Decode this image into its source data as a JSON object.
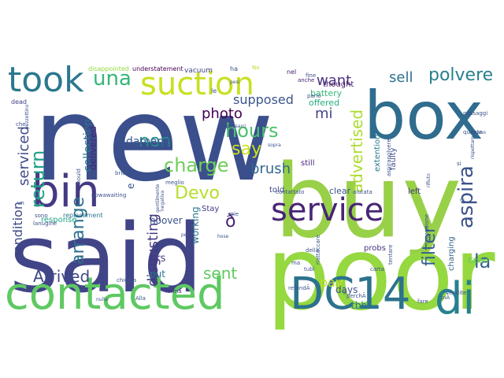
{
  "words": [
    {
      "text": "new",
      "color": "#3a4f8c"
    },
    {
      "text": "buy",
      "color": "#98d048"
    },
    {
      "text": "said",
      "color": "#414487"
    },
    {
      "text": "poor",
      "color": "#95d840"
    },
    {
      "text": "box",
      "color": "#2f6c8e"
    },
    {
      "text": "contacted",
      "color": "#5ec962"
    },
    {
      "text": "suction",
      "color": "#c8e020"
    },
    {
      "text": "DC14",
      "color": "#2c728e"
    },
    {
      "text": "di",
      "color": "#27808e"
    },
    {
      "text": "bin",
      "color": "#443a83"
    },
    {
      "text": "took",
      "color": "#2a788e"
    },
    {
      "text": "service",
      "color": "#482576"
    },
    {
      "text": "una",
      "color": "#35b779"
    },
    {
      "text": "charge",
      "color": "#6ece58"
    },
    {
      "text": "hours",
      "color": "#4ac16d"
    },
    {
      "text": "return",
      "color": "#1fa188"
    },
    {
      "text": "aspira",
      "color": "#3b528b"
    },
    {
      "text": "say",
      "color": "#cde11d"
    },
    {
      "text": "non",
      "color": "#21918c"
    },
    {
      "text": "advertised",
      "color": "#addc30"
    },
    {
      "text": "polvere",
      "color": "#27808e"
    },
    {
      "text": "Devo",
      "color": "#b5de2b"
    },
    {
      "text": "brush",
      "color": "#31688e"
    },
    {
      "text": "photo",
      "color": "#440154"
    },
    {
      "text": "filter",
      "color": "#355f8d"
    },
    {
      "text": "la",
      "color": "#365c8d"
    },
    {
      "text": "want",
      "color": "#46327e"
    },
    {
      "text": "sell",
      "color": "#2c728e"
    },
    {
      "text": "mi",
      "color": "#414487"
    },
    {
      "text": "serviced",
      "color": "#3e4a89"
    },
    {
      "text": "arrange",
      "color": "#2d708e"
    },
    {
      "text": "disgusting",
      "color": "#453882"
    },
    {
      "text": "Arrived",
      "color": "#3f4788"
    },
    {
      "text": "condition",
      "color": "#3e4989"
    },
    {
      "text": "supposed",
      "color": "#3a548c"
    },
    {
      "text": "damage",
      "color": "#38588c"
    },
    {
      "text": "sent",
      "color": "#60ca60"
    },
    {
      "text": "pay",
      "color": "#c2df23"
    },
    {
      "text": "collection",
      "color": "#2c738e"
    },
    {
      "text": "delivered",
      "color": "#482576"
    },
    {
      "text": "hrs",
      "color": "#443983"
    },
    {
      "text": "hoover",
      "color": "#3b528b"
    },
    {
      "text": "working",
      "color": "#2b758e"
    },
    {
      "text": "put",
      "color": "#2a768e"
    },
    {
      "text": "days",
      "color": "#3b528b"
    },
    {
      "text": "tbh",
      "color": "#2a788e"
    },
    {
      "text": "battery",
      "color": "#35b779"
    },
    {
      "text": "offered",
      "color": "#27ad81"
    },
    {
      "text": "thought",
      "color": "#481668"
    },
    {
      "text": "extention",
      "color": "#287c8e"
    },
    {
      "text": "faulty",
      "color": "#3d4d8a"
    },
    {
      "text": "left",
      "color": "#46337f"
    },
    {
      "text": "clear",
      "color": "#3b528b"
    },
    {
      "text": "told",
      "color": "#3f4889"
    },
    {
      "text": "still",
      "color": "#482878"
    },
    {
      "text": "probs",
      "color": "#46337f"
    },
    {
      "text": "charging",
      "color": "#33638d"
    },
    {
      "text": "Good",
      "color": "#5ec962"
    },
    {
      "text": "response",
      "color": "#21a585"
    },
    {
      "text": "Stay",
      "color": "#443a83"
    },
    {
      "text": "e",
      "color": "#3b528b"
    },
    {
      "text": "ð",
      "color": "#481f70"
    },
    {
      "text": "disappointed",
      "color": "#95d840"
    },
    {
      "text": "understatement",
      "color": "#440154"
    },
    {
      "text": "vacuum",
      "color": "#404688"
    },
    {
      "text": "dead",
      "color": "#414487"
    },
    {
      "text": "replacement",
      "color": "#2a788e"
    },
    {
      "text": "nel",
      "color": "#482475"
    },
    {
      "text": "anche",
      "color": "#482475"
    },
    {
      "text": "ha",
      "color": "#3b528b"
    },
    {
      "text": "No",
      "color": "#bddf26"
    },
    {
      "text": "parlo",
      "color": "#3b528b"
    },
    {
      "text": "Alla",
      "color": "#3b528b"
    },
    {
      "text": "forma",
      "color": "#46327e"
    },
    {
      "text": "chiesta",
      "color": "#3b528b"
    },
    {
      "text": "perchÃ",
      "color": "#3b528b"
    },
    {
      "text": "fare",
      "color": "#3b528b"
    },
    {
      "text": "piÃ",
      "color": "#3b528b"
    },
    {
      "text": "vendite",
      "color": "#3b528b"
    },
    {
      "text": "quanto",
      "color": "#3b528b"
    },
    {
      "text": "mie",
      "color": "#3b528b"
    },
    {
      "text": "contattato",
      "color": "#3b528b"
    },
    {
      "text": "aiutata",
      "color": "#3b528b"
    },
    {
      "text": "carta",
      "color": "#3b528b"
    },
    {
      "text": "tubi",
      "color": "#3b528b"
    },
    {
      "text": "della",
      "color": "#3b528b"
    },
    {
      "text": "tentare",
      "color": "#3b528b"
    },
    {
      "text": "riattaccare",
      "color": "#3b528b"
    },
    {
      "text": "sono",
      "color": "#3b528b"
    },
    {
      "text": "lanugine",
      "color": "#3b528b"
    },
    {
      "text": "un",
      "color": "#3b528b"
    },
    {
      "text": "mould",
      "color": "#3b528b"
    },
    {
      "text": "nowawaiting",
      "color": "#3b528b"
    },
    {
      "text": "briciola",
      "color": "#3b528b"
    },
    {
      "text": "meglio",
      "color": "#3b528b"
    },
    {
      "text": "negativa",
      "color": "#3b528b"
    },
    {
      "text": "che",
      "color": "#3b528b"
    },
    {
      "text": "pezzettino",
      "color": "#3b528b"
    },
    {
      "text": "fine",
      "color": "#3b528b"
    },
    {
      "text": "passarci",
      "color": "#3b528b"
    },
    {
      "text": "aspirapolvere",
      "color": "#3b528b"
    },
    {
      "text": "recensione",
      "color": "#3b528b"
    },
    {
      "text": "ci",
      "color": "#3b528b"
    },
    {
      "text": "passaggi",
      "color": "#3b528b"
    },
    {
      "text": "rifiuto",
      "color": "#3b528b"
    },
    {
      "text": "refundÃ",
      "color": "#3b528b"
    },
    {
      "text": "le",
      "color": "#3b528b"
    },
    {
      "text": "pesi",
      "color": "#3b528b"
    },
    {
      "text": "sopra",
      "color": "#3b528b"
    },
    {
      "text": "gentilmente",
      "color": "#3b528b"
    },
    {
      "text": "per",
      "color": "#3b528b"
    },
    {
      "text": "mano",
      "color": "#3b528b"
    },
    {
      "text": "il",
      "color": "#3b528b"
    },
    {
      "text": "hose",
      "color": "#3b528b"
    },
    {
      "text": "si",
      "color": "#3b528b"
    },
    {
      "text": "nulla",
      "color": "#3b528b"
    },
    {
      "text": "rispettare",
      "color": "#3b528b"
    },
    {
      "text": "ma",
      "color": "#3b528b"
    }
  ]
}
